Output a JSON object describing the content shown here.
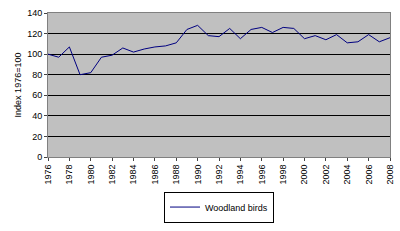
{
  "chart_data": {
    "type": "line",
    "y_label": "Index 1976=100",
    "x": [
      1976,
      1977,
      1978,
      1979,
      1980,
      1981,
      1982,
      1983,
      1984,
      1985,
      1986,
      1987,
      1988,
      1989,
      1990,
      1991,
      1992,
      1993,
      1994,
      1995,
      1996,
      1997,
      1998,
      1999,
      2000,
      2001,
      2002,
      2003,
      2004,
      2005,
      2006,
      2007,
      2008
    ],
    "series": [
      {
        "name": "Woodland birds",
        "color": "#000080",
        "values": [
          100,
          97,
          107,
          80,
          82,
          97,
          99,
          106,
          102,
          105,
          107,
          108,
          111,
          124,
          128,
          118,
          117,
          125,
          115,
          124,
          126,
          121,
          126,
          125,
          115,
          118,
          114,
          119,
          111,
          112,
          119,
          112,
          116
        ]
      }
    ],
    "xlim": [
      1976,
      2008
    ],
    "xticks": [
      1976,
      1978,
      1980,
      1982,
      1984,
      1986,
      1988,
      1990,
      1992,
      1994,
      1996,
      1998,
      2000,
      2002,
      2004,
      2006,
      2008
    ],
    "ylim": [
      0,
      140
    ],
    "yticks": [
      0,
      20,
      40,
      60,
      80,
      100,
      120,
      140
    ],
    "grid": true,
    "legend": "bottom"
  }
}
